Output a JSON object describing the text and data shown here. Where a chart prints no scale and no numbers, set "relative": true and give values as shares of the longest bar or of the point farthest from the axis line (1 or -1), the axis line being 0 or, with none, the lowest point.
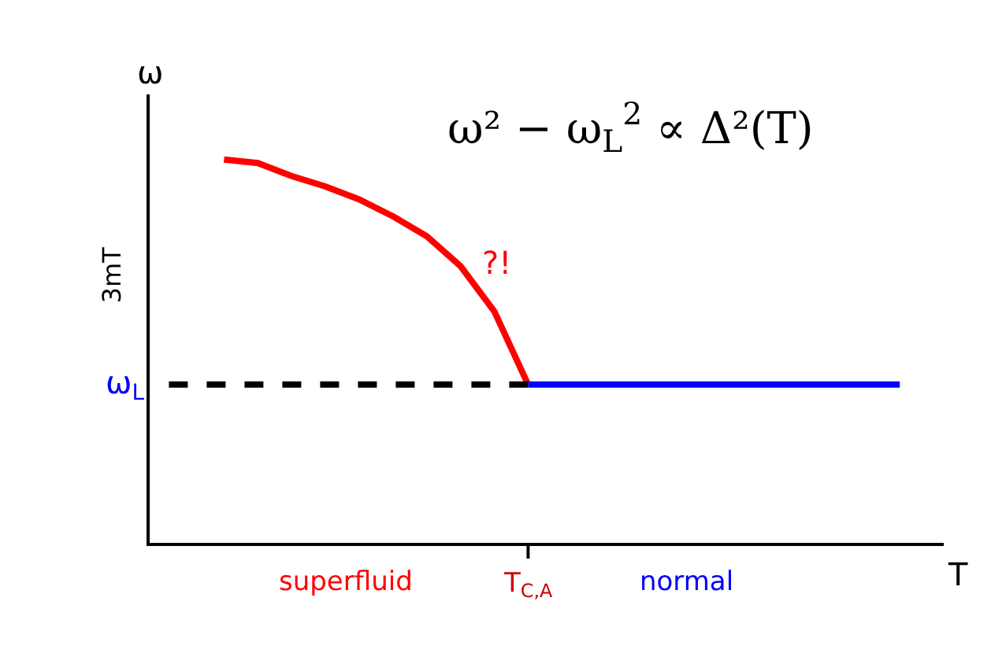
{
  "chart_data": {
    "type": "line",
    "relative": true,
    "xlabel": "T",
    "ylabel": "ω",
    "categories": [
      null,
      null,
      null,
      null,
      null,
      null,
      null,
      null,
      null,
      null,
      null,
      null,
      null,
      null,
      null,
      null,
      null,
      null,
      null,
      null,
      null,
      null,
      null
    ],
    "series": [
      {
        "color": "#ff0000",
        "values": [
          null,
          null,
          1,
          0.991,
          0.957,
          0.93,
          0.896,
          0.852,
          0.8,
          0.722,
          0.604,
          0.413,
          null,
          null,
          null,
          null,
          null,
          null,
          null,
          null,
          null,
          null,
          null
        ]
      },
      {
        "color": "#0000ff",
        "values": [
          null,
          null,
          null,
          null,
          null,
          null,
          null,
          null,
          null,
          null,
          null,
          0.413,
          0.413,
          0.413,
          0.413,
          0.413,
          0.413,
          0.413,
          0.413,
          0.413,
          0.413,
          0.413,
          0.413
        ]
      },
      {
        "color": "#000000",
        "line_style": "dashed",
        "values": [
          0.413,
          0.413,
          0.413,
          0.413,
          0.413,
          0.413,
          0.413,
          0.413,
          0.413,
          0.413,
          0.413,
          0.413,
          null,
          null,
          null,
          null,
          null,
          null,
          null,
          null,
          null,
          null,
          null
        ]
      }
    ],
    "annotations": [
      "ω² − ω$_{L}$$^{2}$ ∝ Δ²(T)",
      "?!",
      "3mT",
      "ω$_{L}$",
      "superfluid",
      "T$_{C,A}$",
      "normal"
    ],
    "marker": "none",
    "line_style": "solid"
  }
}
